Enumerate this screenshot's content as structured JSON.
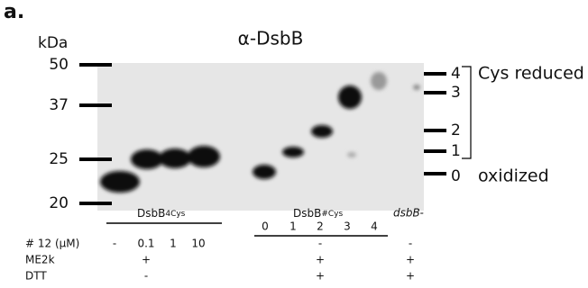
{
  "figure_label": "a.",
  "unit": "kDa",
  "title": "α-DsbB",
  "markers": [
    "50",
    "37",
    "25",
    "20"
  ],
  "cys_states": [
    "4",
    "3",
    "2",
    "1",
    "0"
  ],
  "state_labels": {
    "reduced": "Cys reduced",
    "oxidized": "oxidized"
  },
  "groups": [
    {
      "main": "DsbB",
      "sub": "4Cys"
    },
    {
      "main": "DsbB",
      "sub": "#Cys"
    },
    {
      "main": "dsbB-"
    }
  ],
  "lane_numbers": [
    "0",
    "1",
    "2",
    "3",
    "4"
  ],
  "rows": [
    {
      "label": "# 12 (μM)",
      "cells": [
        "-",
        "0.1",
        "1",
        "10",
        "-",
        "-"
      ]
    },
    {
      "label": "ME2k",
      "cells": [
        "+",
        "+",
        "+"
      ]
    },
    {
      "label": "DTT",
      "cells": [
        "-",
        "+",
        "+"
      ]
    }
  ]
}
